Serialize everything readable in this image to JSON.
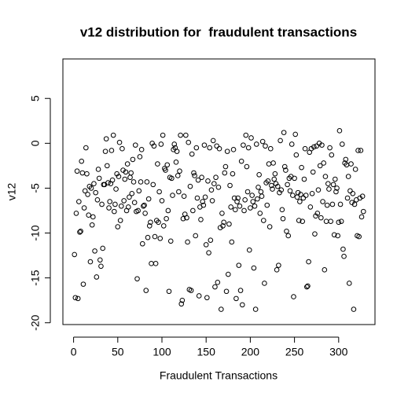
{
  "chart_data": {
    "type": "scatter",
    "title": "v12 distribution for  fraudulent transactions",
    "x_label": "Fraudulent Transactions",
    "y_label": "v12",
    "xlim": [
      -12.1,
      341.1
    ],
    "ylim": [
      -20.2,
      9.4
    ],
    "xticks": [
      0,
      50,
      100,
      150,
      200,
      250,
      300
    ],
    "yticks": [
      -20,
      -15,
      -10,
      -5,
      0,
      5
    ],
    "color": "#000000",
    "x": [
      1,
      2,
      3,
      4,
      5,
      6,
      7,
      8,
      9,
      10,
      11,
      12,
      13,
      14,
      15,
      16,
      17,
      18,
      19,
      20,
      21,
      22,
      23,
      24,
      25,
      26,
      27,
      28,
      29,
      30,
      31,
      32,
      33,
      34,
      35,
      36,
      37,
      38,
      39,
      40,
      41,
      42,
      43,
      44,
      45,
      46,
      47,
      48,
      49,
      50,
      51,
      52,
      53,
      54,
      55,
      56,
      57,
      58,
      59,
      60,
      61,
      62,
      63,
      64,
      65,
      66,
      67,
      68,
      69,
      70,
      71,
      72,
      73,
      74,
      75,
      76,
      77,
      78,
      79,
      80,
      81,
      82,
      83,
      84,
      85,
      86,
      87,
      88,
      89,
      90,
      91,
      92,
      93,
      94,
      95,
      96,
      97,
      98,
      99,
      100,
      101,
      102,
      103,
      104,
      105,
      106,
      107,
      108,
      109,
      110,
      111,
      112,
      113,
      114,
      115,
      116,
      117,
      118,
      119,
      120,
      121,
      122,
      123,
      124,
      125,
      126,
      127,
      128,
      129,
      130,
      131,
      132,
      133,
      134,
      135,
      136,
      137,
      138,
      139,
      140,
      141,
      142,
      143,
      144,
      145,
      146,
      147,
      148,
      149,
      150,
      151,
      152,
      153,
      154,
      155,
      156,
      157,
      158,
      159,
      160,
      161,
      162,
      163,
      164,
      165,
      166,
      167,
      168,
      169,
      170,
      171,
      172,
      173,
      174,
      175,
      176,
      177,
      178,
      179,
      180,
      181,
      182,
      183,
      184,
      185,
      186,
      187,
      188,
      189,
      190,
      191,
      192,
      193,
      194,
      195,
      196,
      197,
      198,
      199,
      200,
      201,
      202,
      203,
      204,
      205,
      206,
      207,
      208,
      209,
      210,
      211,
      212,
      213,
      214,
      215,
      216,
      217,
      218,
      219,
      220,
      221,
      222,
      223,
      224,
      225,
      226,
      227,
      228,
      229,
      230,
      231,
      232,
      233,
      234,
      235,
      236,
      237,
      238,
      239,
      240,
      241,
      242,
      243,
      244,
      245,
      246,
      247,
      248,
      249,
      250,
      251,
      252,
      253,
      254,
      255,
      256,
      257,
      258,
      259,
      260,
      261,
      262,
      263,
      264,
      265,
      266,
      267,
      268,
      269,
      270,
      271,
      272,
      273,
      274,
      275,
      276,
      277,
      278,
      279,
      280,
      281,
      282,
      283,
      284,
      285,
      286,
      287,
      288,
      289,
      290,
      291,
      292,
      293,
      294,
      295,
      296,
      297,
      298,
      299,
      300,
      301,
      302,
      303,
      304,
      305,
      306,
      307,
      308,
      309,
      310,
      311,
      312,
      313,
      314,
      315,
      316,
      317,
      318,
      319,
      320,
      321,
      322,
      323,
      324,
      325,
      326,
      327,
      328
    ],
    "values": [
      -12.4,
      -17.2,
      -7.8,
      -3.1,
      -17.3,
      -6.5,
      -9.9,
      -9.8,
      -2.0,
      -3.3,
      -15.7,
      -7.2,
      -5.3,
      -0.5,
      -3.4,
      -5.7,
      -8.0,
      -4.8,
      -13.2,
      -5.0,
      -9.1,
      -8.2,
      -4.5,
      -12.0,
      -5.5,
      -14.9,
      -6.3,
      -2.9,
      -3.9,
      -13.0,
      -13.7,
      -6.8,
      -11.7,
      -4.6,
      -4.6,
      -0.9,
      0.5,
      -2.5,
      -4.4,
      -7.2,
      -6.5,
      -4.5,
      -0.8,
      -4.1,
      0.9,
      -7.6,
      -6.8,
      -5.1,
      -3.4,
      -9.3,
      -3.7,
      0.1,
      -8.6,
      -7.0,
      -0.6,
      -3.0,
      -6.4,
      -4.0,
      -3.2,
      -7.5,
      -2.3,
      -7.1,
      -6.0,
      -3.8,
      -3.3,
      -5.6,
      -1.8,
      -4.3,
      -6.6,
      -0.2,
      -7.6,
      -15.1,
      -7.5,
      -5.3,
      -1.5,
      -4.3,
      -0.7,
      -11.2,
      -7.0,
      -6.9,
      -7.8,
      -16.4,
      -4.3,
      -10.5,
      -6.2,
      -9.2,
      -8.8,
      -13.4,
      0.0,
      -4.6,
      -0.3,
      -10.4,
      -13.4,
      -8.6,
      -2.3,
      -8.8,
      -5.4,
      -10.6,
      -0.1,
      -6.4,
      0.9,
      -9.2,
      -2.8,
      -3.0,
      -8.4,
      -2.4,
      -7.5,
      -16.5,
      -3.8,
      -10.9,
      -3.9,
      -5.8,
      -0.7,
      -0.1,
      -0.5,
      -2.1,
      -0.9,
      -3.6,
      -5.4,
      -3.1,
      0.9,
      -17.9,
      -17.5,
      -8.4,
      -5.9,
      -7.9,
      0.9,
      -8.3,
      -11.0,
      0.1,
      -16.3,
      -4.8,
      -16.4,
      -1.2,
      -7.5,
      -3.3,
      -3.6,
      -10.3,
      -0.5,
      -6.1,
      -4.1,
      -17.0,
      -7.1,
      -8.5,
      -3.8,
      -6.5,
      -6.9,
      -0.2,
      -6.0,
      -11.3,
      -17.2,
      -4.2,
      -12.2,
      -0.5,
      -10.8,
      -5.2,
      -6.4,
      0.3,
      -4.5,
      -16.0,
      -3.8,
      -0.3,
      -15.5,
      -4.9,
      -0.6,
      -9.4,
      -18.5,
      -7.8,
      -9.2,
      -8.8,
      -3.3,
      -2.6,
      -16.5,
      -0.9,
      -14.6,
      -9.0,
      -4.7,
      -7.1,
      -11.0,
      -3.4,
      -0.7,
      -6.1,
      -7.4,
      -17.3,
      -6.5,
      -6.1,
      -13.6,
      -7.0,
      -16.4,
      -2.0,
      -18.0,
      -0.2,
      -7.5,
      -6.3,
      0.9,
      -2.6,
      -5.4,
      -0.5,
      -11.9,
      -7.2,
      0.6,
      -5.8,
      -6.5,
      -13.9,
      -7.0,
      -18.5,
      -0.1,
      -6.2,
      -4.9,
      -3.5,
      -7.8,
      -5.4,
      -5.9,
      0.2,
      -8.6,
      -15.6,
      -0.3,
      -4.4,
      -6.9,
      -4.2,
      -2.3,
      -9.3,
      -0.6,
      -4.7,
      -5.1,
      -2.2,
      -4.0,
      -3.4,
      -4.5,
      -14.1,
      -4.8,
      -13.6,
      -5.5,
      0.3,
      -5.2,
      -7.4,
      -8.4,
      1.2,
      -2.6,
      -3.0,
      -9.8,
      -4.6,
      -10.3,
      -3.9,
      -5.3,
      -3.7,
      -0.1,
      -5.8,
      -17.1,
      -3.9,
      1.0,
      -1.3,
      -6.0,
      -5.5,
      -8.6,
      -6.5,
      -5.7,
      -2.7,
      -8.7,
      -6.1,
      -4.0,
      -0.6,
      -5.8,
      -16.0,
      -15.9,
      -13.2,
      -1.0,
      -7.1,
      -0.6,
      -5.6,
      -3.2,
      -0.4,
      -10.1,
      -8.1,
      -0.3,
      -7.8,
      -5.2,
      0.0,
      -2.5,
      -8.3,
      -0.2,
      -6.5,
      -2.2,
      -14.1,
      -3.7,
      -8.7,
      -6.9,
      -4.5,
      -5.1,
      -0.5,
      -8.7,
      -1.3,
      -6.8,
      -4.6,
      -10.2,
      -4.0,
      -5.4,
      -5.0,
      -10.3,
      -8.8,
      1.4,
      -6.8,
      -8.7,
      -0.1,
      -11.8,
      -12.6,
      -2.2,
      -1.8,
      -2.4,
      -6.1,
      -3.7,
      -15.6,
      -5.3,
      -2.3,
      -6.6,
      -5.6,
      -18.5,
      -6.8,
      -2.9,
      -6.3,
      -10.3,
      -0.8,
      -10.4,
      -6.1,
      -0.8,
      -8.2,
      -5.9,
      -7.6
    ]
  }
}
